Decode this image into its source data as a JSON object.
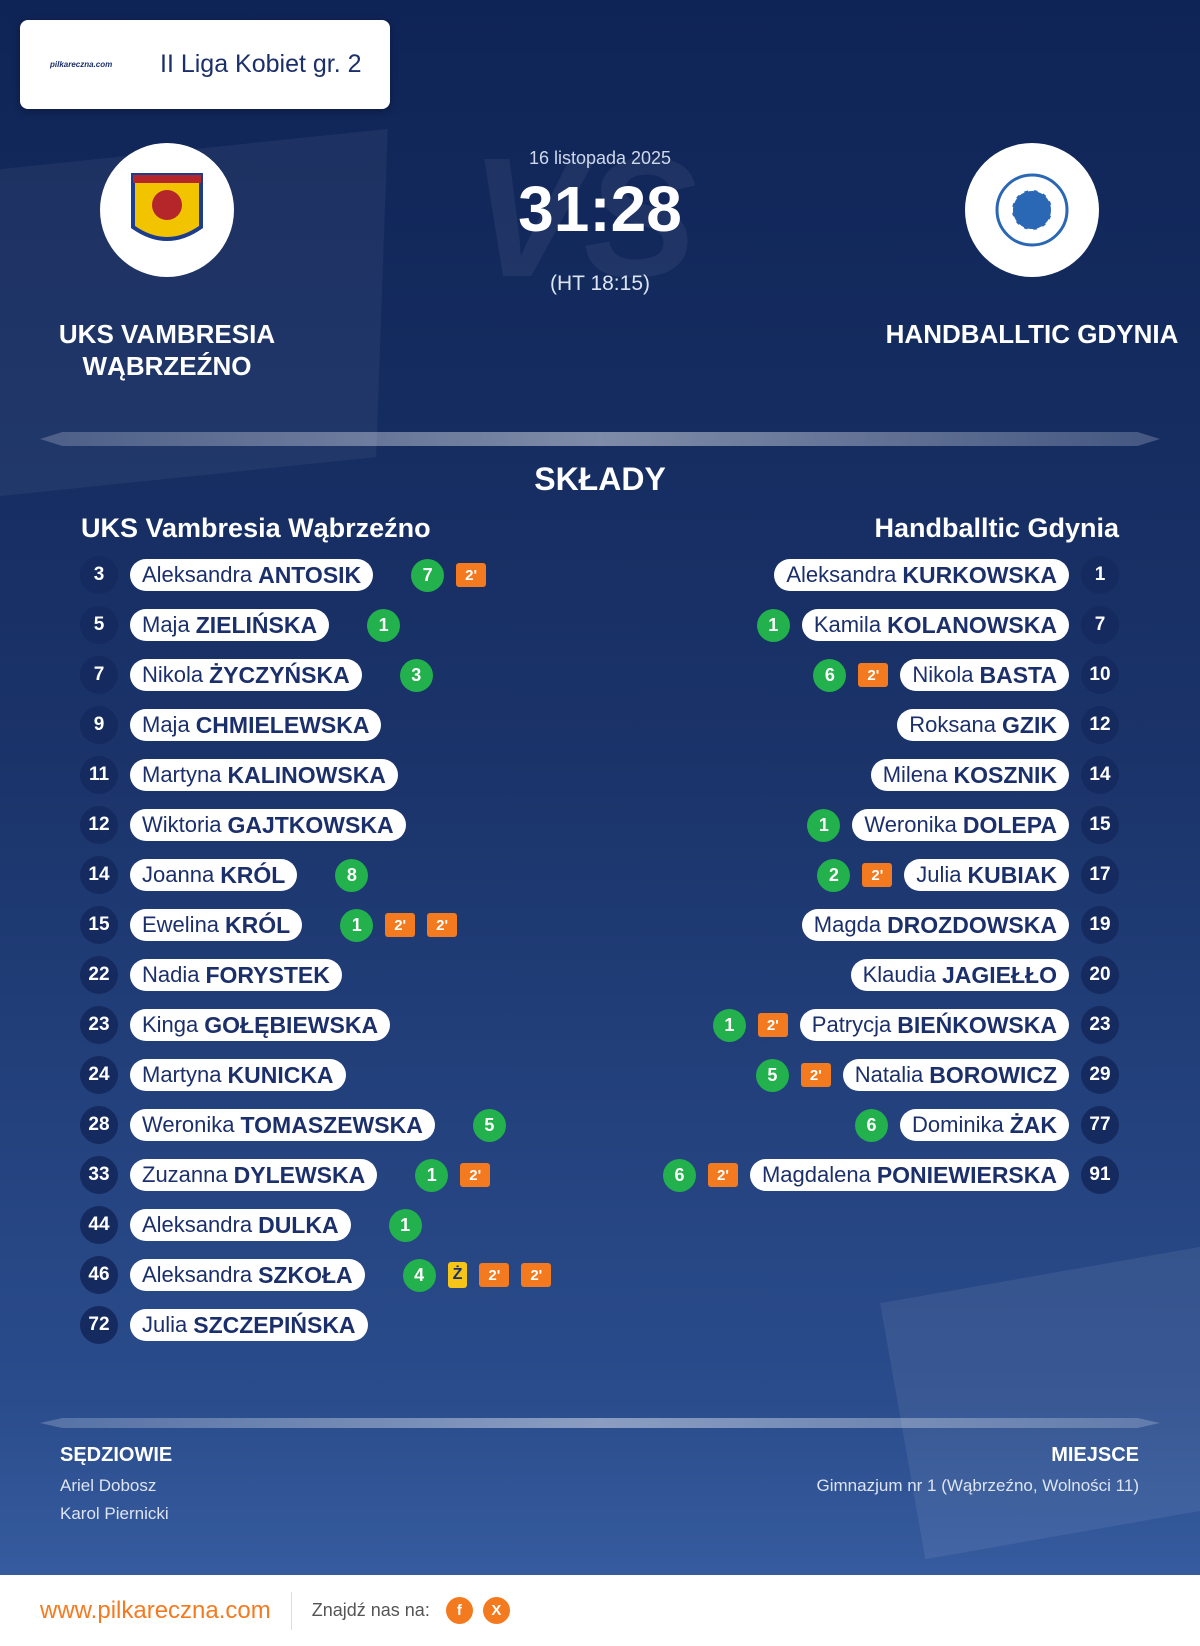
{
  "header": {
    "logo_text": "pilkareczna.com",
    "league": "II Liga Kobiet gr. 2"
  },
  "match": {
    "date": "16 listopada 2025",
    "score": "31:28",
    "halftime": "(HT 18:15)",
    "watermark": "VS"
  },
  "teams": {
    "home": "UKS VAMBRESIA WĄBRZEŹNO",
    "away": "HANDBALLTIC GDYNIA"
  },
  "lineups": {
    "title": "SKŁADY",
    "home": {
      "name": "UKS Vambresia Wąbrzeźno",
      "players": [
        {
          "number": 3,
          "first": "Aleksandra",
          "last": "ANTOSIK",
          "goals": 7,
          "cards": [
            "2'"
          ]
        },
        {
          "number": 5,
          "first": "Maja",
          "last": "ZIELIŃSKA",
          "goals": 1
        },
        {
          "number": 7,
          "first": "Nikola",
          "last": "ŻYCZYŃSKA",
          "goals": 3
        },
        {
          "number": 9,
          "first": "Maja",
          "last": "CHMIELEWSKA"
        },
        {
          "number": 11,
          "first": "Martyna",
          "last": "KALINOWSKA"
        },
        {
          "number": 12,
          "first": "Wiktoria",
          "last": "GAJTKOWSKA"
        },
        {
          "number": 14,
          "first": "Joanna",
          "last": "KRÓL",
          "goals": 8
        },
        {
          "number": 15,
          "first": "Ewelina",
          "last": "KRÓL",
          "goals": 1,
          "cards": [
            "2'",
            "2'"
          ]
        },
        {
          "number": 22,
          "first": "Nadia",
          "last": "FORYSTEK"
        },
        {
          "number": 23,
          "first": "Kinga",
          "last": "GOŁĘBIEWSKA"
        },
        {
          "number": 24,
          "first": "Martyna",
          "last": "KUNICKA"
        },
        {
          "number": 28,
          "first": "Weronika",
          "last": "TOMASZEWSKA",
          "goals": 5
        },
        {
          "number": 33,
          "first": "Zuzanna",
          "last": "DYLEWSKA",
          "goals": 1,
          "cards": [
            "2'"
          ]
        },
        {
          "number": 44,
          "first": "Aleksandra",
          "last": "DULKA",
          "goals": 1
        },
        {
          "number": 46,
          "first": "Aleksandra",
          "last": "SZKOŁA",
          "goals": 4,
          "yellow": "Ż",
          "cards": [
            "2'",
            "2'"
          ]
        },
        {
          "number": 72,
          "first": "Julia",
          "last": "SZCZEPIŃSKA"
        }
      ]
    },
    "away": {
      "name": "Handballtic Gdynia",
      "players": [
        {
          "number": 1,
          "first": "Aleksandra",
          "last": "KURKOWSKA"
        },
        {
          "number": 7,
          "first": "Kamila",
          "last": "KOLANOWSKA",
          "goals": 1
        },
        {
          "number": 10,
          "first": "Nikola",
          "last": "BASTA",
          "goals": 6,
          "cards": [
            "2'"
          ]
        },
        {
          "number": 12,
          "first": "Roksana",
          "last": "GZIK"
        },
        {
          "number": 14,
          "first": "Milena",
          "last": "KOSZNIK"
        },
        {
          "number": 15,
          "first": "Weronika",
          "last": "DOLEPA",
          "goals": 1
        },
        {
          "number": 17,
          "first": "Julia",
          "last": "KUBIAK",
          "goals": 2,
          "cards": [
            "2'"
          ]
        },
        {
          "number": 19,
          "first": "Magda",
          "last": "DROZDOWSKA"
        },
        {
          "number": 20,
          "first": "Klaudia",
          "last": "JAGIEŁŁO"
        },
        {
          "number": 23,
          "first": "Patrycja",
          "last": "BIEŃKOWSKA",
          "goals": 1,
          "cards": [
            "2'"
          ]
        },
        {
          "number": 29,
          "first": "Natalia",
          "last": "BOROWICZ",
          "goals": 5,
          "cards": [
            "2'"
          ]
        },
        {
          "number": 77,
          "first": "Dominika",
          "last": "ŻAK",
          "goals": 6
        },
        {
          "number": 91,
          "first": "Magdalena",
          "last": "PONIEWIERSKA",
          "goals": 6,
          "cards": [
            "2'"
          ]
        }
      ]
    }
  },
  "officials": {
    "title": "SĘDZIOWIE",
    "names": [
      "Ariel Dobosz",
      "Karol Piernicki"
    ]
  },
  "venue": {
    "title": "MIEJSCE",
    "name": "Gimnazjum nr 1 (Wąbrzeźno, Wolności 11)"
  },
  "footer": {
    "site": "www.pilkareczna.com",
    "find_us": "Znajdź nas na:",
    "social": [
      "f",
      "X"
    ]
  }
}
